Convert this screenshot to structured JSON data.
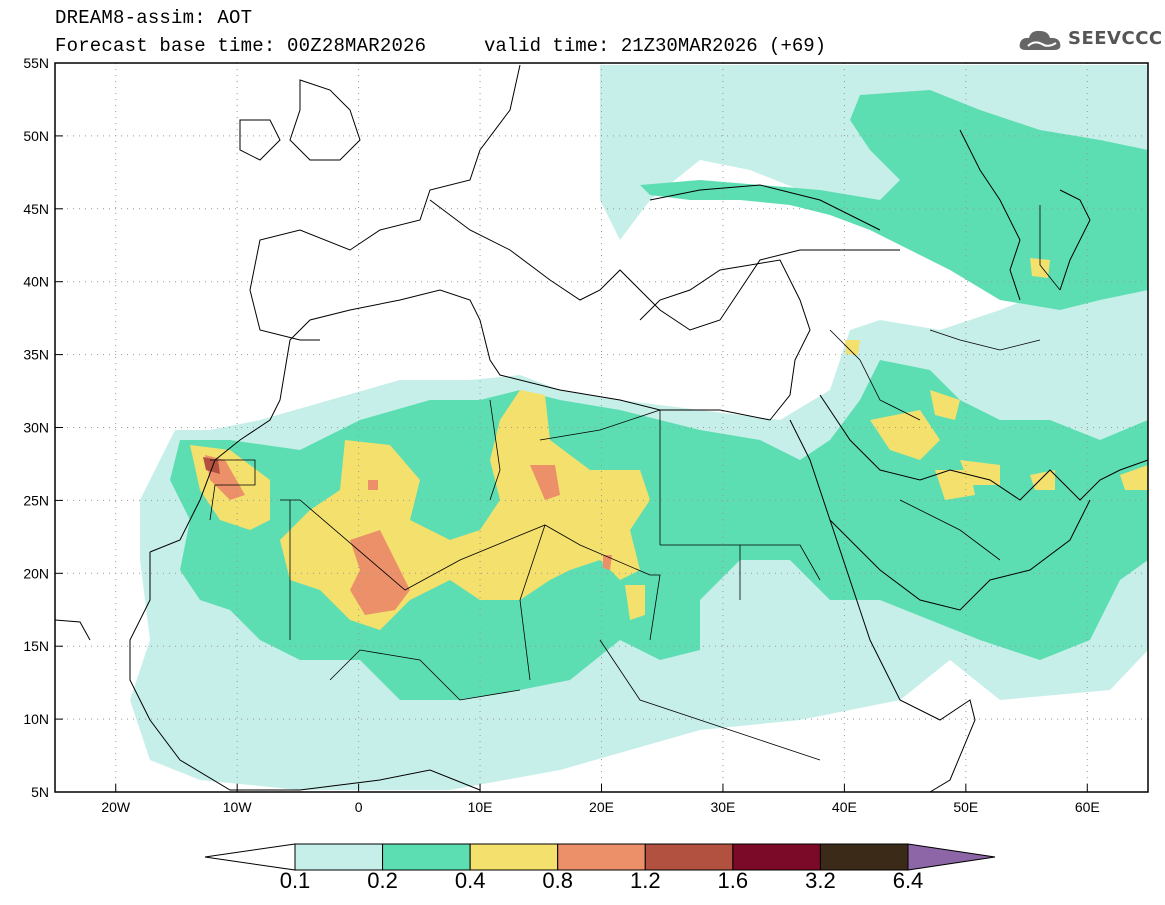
{
  "header": {
    "title": "DREAM8-assim: AOT",
    "base_time": "Forecast base time: 00Z28MAR2026",
    "valid_time": "valid time: 21Z30MAR2026 (+69)"
  },
  "logo": {
    "text": "SEEVCCC",
    "icon": "cloud-icon"
  },
  "map": {
    "lon_range": [
      -25,
      65
    ],
    "lat_range": [
      5,
      55
    ],
    "lon_ticks": [
      "20W",
      "10W",
      "0",
      "10E",
      "20E",
      "30E",
      "40E",
      "50E",
      "60E"
    ],
    "lat_ticks": [
      "5N",
      "10N",
      "15N",
      "20N",
      "25N",
      "30N",
      "35N",
      "40N",
      "45N",
      "50N",
      "55N"
    ],
    "grid": true
  },
  "legend": {
    "labels": [
      "0.1",
      "0.2",
      "0.4",
      "0.8",
      "1.2",
      "1.6",
      "3.2",
      "6.4"
    ],
    "colors": [
      "#c6efe9",
      "#5ddeb2",
      "#f4e06d",
      "#eb9068",
      "#b2513f",
      "#7a0a27",
      "#3b2a17",
      "#8c66a6"
    ],
    "below_color": "#ffffff"
  }
}
